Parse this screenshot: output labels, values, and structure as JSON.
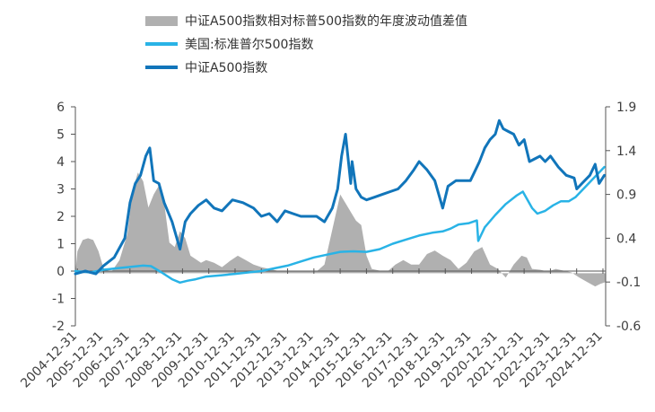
{
  "chart_data": {
    "type": "line",
    "legend_position": "top",
    "colors": {
      "diff_area": "#b0b0b0",
      "sp500": "#29b3e6",
      "csia500": "#1175ba"
    },
    "x_tick_labels": [
      "2004-12-31",
      "2005-12-31",
      "2006-12-31",
      "2007-12-31",
      "2008-12-31",
      "2009-12-31",
      "2010-12-31",
      "2011-12-31",
      "2012-12-31",
      "2013-12-31",
      "2014-12-31",
      "2015-12-31",
      "2016-12-31",
      "2017-12-31",
      "2018-12-31",
      "2019-12-31",
      "2020-12-31",
      "2021-12-31",
      "2022-12-31",
      "2023-12-31",
      "2024-12-31"
    ],
    "y_left": {
      "range": [
        -2,
        6
      ],
      "ticks": [
        "-2",
        "-1",
        "0",
        "1",
        "2",
        "3",
        "4",
        "5",
        "6"
      ]
    },
    "y_right": {
      "range": [
        -0.6,
        1.9
      ],
      "ticks": [
        "-0.6",
        "-0.1",
        "0.4",
        "0.9",
        "1.4",
        "1.9"
      ]
    },
    "series": [
      {
        "name": "中证A500指数相对标普500指数的年度波动值差值",
        "type": "area",
        "axis": "right",
        "x": [
          2004.92,
          2005.0,
          2005.2,
          2005.4,
          2005.6,
          2005.8,
          2006.0,
          2006.3,
          2006.6,
          2006.9,
          2007.1,
          2007.3,
          2007.5,
          2007.7,
          2007.9,
          2008.1,
          2008.3,
          2008.5,
          2008.7,
          2008.9,
          2009.1,
          2009.3,
          2009.5,
          2009.7,
          2009.9,
          2010.2,
          2010.5,
          2010.8,
          2011.1,
          2011.4,
          2011.7,
          2012.0,
          2012.3,
          2012.6,
          2012.9,
          2013.2,
          2013.5,
          2013.8,
          2014.1,
          2014.4,
          2014.7,
          2015.0,
          2015.2,
          2015.4,
          2015.6,
          2015.8,
          2016.0,
          2016.2,
          2016.5,
          2016.8,
          2017.1,
          2017.4,
          2017.7,
          2018.0,
          2018.3,
          2018.6,
          2018.9,
          2019.2,
          2019.5,
          2019.8,
          2020.1,
          2020.4,
          2020.7,
          2021.0,
          2021.3,
          2021.6,
          2021.9,
          2022.1,
          2022.3,
          2022.6,
          2022.9,
          2023.2,
          2023.5,
          2023.8,
          2024.1,
          2024.4,
          2024.7,
          2024.9,
          2025.1
        ],
        "values": [
          0.0,
          0.25,
          0.38,
          0.4,
          0.38,
          0.25,
          0.05,
          0.02,
          0.15,
          0.45,
          0.95,
          1.15,
          1.05,
          0.75,
          0.9,
          1.0,
          0.8,
          0.35,
          0.3,
          0.48,
          0.4,
          0.2,
          0.16,
          0.12,
          0.15,
          0.12,
          0.07,
          0.14,
          0.2,
          0.15,
          0.1,
          0.07,
          0.05,
          0.03,
          0.02,
          0.02,
          0.02,
          0.03,
          0.02,
          0.1,
          0.5,
          0.9,
          0.8,
          0.7,
          0.6,
          0.55,
          0.2,
          0.05,
          0.03,
          0.02,
          0.1,
          0.15,
          0.1,
          0.1,
          0.22,
          0.26,
          0.2,
          0.15,
          0.05,
          0.12,
          0.25,
          0.3,
          0.1,
          0.05,
          -0.05,
          0.1,
          0.2,
          0.18,
          0.05,
          0.04,
          0.02,
          0.05,
          0.03,
          0.01,
          -0.05,
          -0.1,
          -0.15,
          -0.12,
          -0.1
        ]
      },
      {
        "name": "美国:标准普尔500指数",
        "type": "line",
        "axis": "left",
        "x": [
          2004.92,
          2005.5,
          2006.0,
          2006.5,
          2007.0,
          2007.5,
          2007.8,
          2008.2,
          2008.6,
          2008.9,
          2009.2,
          2009.5,
          2009.9,
          2010.5,
          2011.0,
          2011.5,
          2012.0,
          2012.5,
          2013.0,
          2013.5,
          2014.0,
          2014.5,
          2015.0,
          2015.5,
          2016.0,
          2016.5,
          2017.0,
          2017.5,
          2018.0,
          2018.5,
          2018.9,
          2019.2,
          2019.5,
          2019.9,
          2020.2,
          2020.25,
          2020.5,
          2020.9,
          2021.3,
          2021.7,
          2021.95,
          2022.3,
          2022.5,
          2022.8,
          2023.1,
          2023.4,
          2023.7,
          2023.95,
          2024.3,
          2024.6,
          2024.9,
          2025.05
        ],
        "values": [
          0.0,
          -0.05,
          0.05,
          0.1,
          0.15,
          0.2,
          0.18,
          -0.05,
          -0.3,
          -0.42,
          -0.35,
          -0.3,
          -0.2,
          -0.15,
          -0.1,
          -0.05,
          0.0,
          0.1,
          0.2,
          0.35,
          0.5,
          0.6,
          0.7,
          0.72,
          0.7,
          0.8,
          1.0,
          1.15,
          1.3,
          1.4,
          1.45,
          1.55,
          1.7,
          1.75,
          1.85,
          1.1,
          1.6,
          2.05,
          2.45,
          2.75,
          2.9,
          2.3,
          2.1,
          2.2,
          2.4,
          2.55,
          2.55,
          2.7,
          3.05,
          3.35,
          3.65,
          3.8
        ]
      },
      {
        "name": "中证A500指数",
        "type": "line",
        "axis": "left",
        "x": [
          2004.92,
          2005.3,
          2005.7,
          2006.0,
          2006.4,
          2006.8,
          2007.0,
          2007.2,
          2007.4,
          2007.6,
          2007.75,
          2007.9,
          2008.1,
          2008.3,
          2008.6,
          2008.9,
          2009.1,
          2009.3,
          2009.6,
          2009.9,
          2010.2,
          2010.5,
          2010.9,
          2011.3,
          2011.7,
          2012.0,
          2012.3,
          2012.6,
          2012.9,
          2013.2,
          2013.5,
          2013.8,
          2014.1,
          2014.4,
          2014.7,
          2014.9,
          2015.05,
          2015.2,
          2015.4,
          2015.45,
          2015.6,
          2015.8,
          2016.0,
          2016.3,
          2016.6,
          2016.9,
          2017.2,
          2017.5,
          2017.8,
          2018.0,
          2018.3,
          2018.6,
          2018.9,
          2019.1,
          2019.4,
          2019.7,
          2019.95,
          2020.1,
          2020.3,
          2020.5,
          2020.7,
          2020.9,
          2021.05,
          2021.2,
          2021.4,
          2021.6,
          2021.8,
          2022.0,
          2022.2,
          2022.4,
          2022.6,
          2022.8,
          2023.0,
          2023.3,
          2023.6,
          2023.9,
          2024.0,
          2024.2,
          2024.5,
          2024.7,
          2024.85,
          2025.05
        ],
        "values": [
          -0.1,
          0.0,
          -0.1,
          0.2,
          0.5,
          1.2,
          2.5,
          3.2,
          3.5,
          4.2,
          4.5,
          3.3,
          3.2,
          2.5,
          1.8,
          0.8,
          1.8,
          2.1,
          2.4,
          2.6,
          2.3,
          2.2,
          2.6,
          2.5,
          2.3,
          2.0,
          2.1,
          1.8,
          2.2,
          2.1,
          2.0,
          2.0,
          2.0,
          1.8,
          2.3,
          3.0,
          4.2,
          5.0,
          3.2,
          4.0,
          3.0,
          2.7,
          2.6,
          2.7,
          2.8,
          2.9,
          3.0,
          3.3,
          3.7,
          4.0,
          3.7,
          3.3,
          2.3,
          3.1,
          3.3,
          3.3,
          3.3,
          3.6,
          4.0,
          4.5,
          4.8,
          5.0,
          5.5,
          5.2,
          5.1,
          5.0,
          4.6,
          4.8,
          4.0,
          4.1,
          4.2,
          4.0,
          4.2,
          3.8,
          3.5,
          3.4,
          3.0,
          3.2,
          3.5,
          3.9,
          3.2,
          3.5
        ]
      }
    ]
  }
}
